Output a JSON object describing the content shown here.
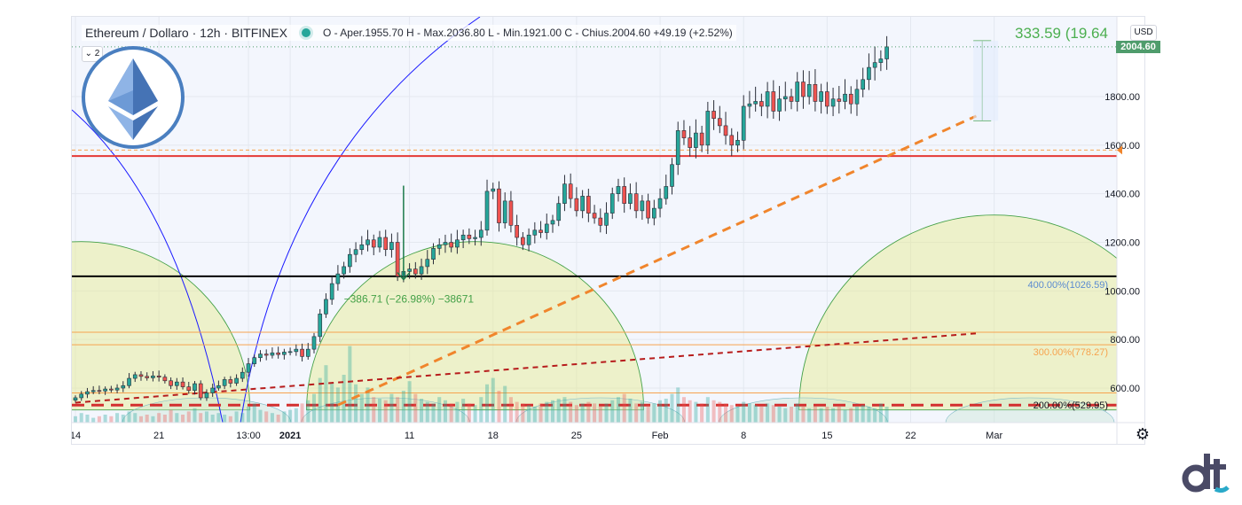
{
  "header": {
    "symbol_title": "Ethereum / Dollaro · 12h · BITFINEX",
    "ohlc": "O - Aper.1955.70  H - Max.2036.80  L - Min.1921.00  C - Chius.2004.60  +49.19 (+2.52%)",
    "collapse_label": "⌄ 2"
  },
  "toolbar": {
    "currency": "USD",
    "settings_icon": "gear-icon"
  },
  "last_price_tag": "2004.60",
  "measure_top_label": "333.59 (19.64",
  "measure_bottom_label": "−386.71 (−26.98%)  −38671",
  "fib_labels": {
    "level_400": "400.00%(1026.59)",
    "level_300": "300.00%(778.27)",
    "level_200": "200.00%(529.95)"
  },
  "colors": {
    "up": "#26a69a",
    "down": "#ef5350",
    "support_red": "#e53935",
    "support_black": "#000000",
    "trend_orange": "#f0852c",
    "trend_darkred": "#b71c1c",
    "arc_blue": "#1a1aff",
    "arc_green": "#43a047",
    "fib_orange": "#f7a34e"
  },
  "icons": [
    "ethereum-logo-icon",
    "gear-icon",
    "brand-logo-icon"
  ],
  "chart_data": {
    "type": "candlestick",
    "symbol": "Ethereum / Dollaro",
    "interval": "12h",
    "exchange": "BITFINEX",
    "ylim": [
      510,
      2100
    ],
    "y_ticks": [
      600,
      800,
      1000,
      1200,
      1400,
      1600,
      1800
    ],
    "y_tick_labels": [
      "600.00",
      "800.00",
      "1000.00",
      "1200.00",
      "1400.00",
      "1600.00",
      "1800.00"
    ],
    "x_tick_labels": [
      {
        "label": "14",
        "day": 0
      },
      {
        "label": "21",
        "day": 7
      },
      {
        "label": "13:00",
        "day": 14.5
      },
      {
        "label": "2021",
        "day": 18
      },
      {
        "label": "11",
        "day": 28
      },
      {
        "label": "18",
        "day": 35
      },
      {
        "label": "25",
        "day": 42
      },
      {
        "label": "Feb",
        "day": 49
      },
      {
        "label": "8",
        "day": 56
      },
      {
        "label": "15",
        "day": 63
      },
      {
        "label": "22",
        "day": 70
      },
      {
        "label": "Mar",
        "day": 77
      }
    ],
    "closes": [
      560,
      575,
      585,
      590,
      588,
      596,
      592,
      600,
      610,
      640,
      655,
      648,
      642,
      650,
      645,
      630,
      610,
      625,
      605,
      590,
      618,
      560,
      580,
      600,
      610,
      635,
      620,
      640,
      665,
      700,
      725,
      740,
      735,
      745,
      738,
      748,
      750,
      760,
      730,
      760,
      812,
      905,
      965,
      1030,
      1070,
      1100,
      1150,
      1170,
      1190,
      1210,
      1180,
      1220,
      1170,
      1200,
      1060,
      1080,
      1090,
      1070,
      1100,
      1130,
      1175,
      1190,
      1200,
      1180,
      1210,
      1230,
      1215,
      1220,
      1250,
      1410,
      1420,
      1280,
      1370,
      1270,
      1220,
      1190,
      1230,
      1250,
      1240,
      1275,
      1290,
      1360,
      1440,
      1380,
      1330,
      1390,
      1320,
      1300,
      1270,
      1320,
      1400,
      1430,
      1360,
      1400,
      1330,
      1370,
      1300,
      1340,
      1380,
      1430,
      1520,
      1660,
      1630,
      1590,
      1650,
      1600,
      1740,
      1710,
      1680,
      1640,
      1600,
      1620,
      1760,
      1770,
      1780,
      1760,
      1820,
      1740,
      1790,
      1800,
      1780,
      1860,
      1800,
      1850,
      1780,
      1820,
      1760,
      1790,
      1780,
      1810,
      1770,
      1830,
      1870,
      1920,
      1940,
      1955,
      2004.6
    ],
    "volumes": [
      0.4,
      0.6,
      0.5,
      0.3,
      0.4,
      0.5,
      0.4,
      0.6,
      0.5,
      0.7,
      0.6,
      0.4,
      0.5,
      0.4,
      0.6,
      0.5,
      0.8,
      0.6,
      0.5,
      0.7,
      0.9,
      0.6,
      0.7,
      0.5,
      0.6,
      0.5,
      0.4,
      0.7,
      0.6,
      1.0,
      1.2,
      0.8,
      0.7,
      0.6,
      0.5,
      0.7,
      0.8,
      0.9,
      1.2,
      1.4,
      1.8,
      2.8,
      3.6,
      2.5,
      2.2,
      3.0,
      4.8,
      2.4,
      1.8,
      2.2,
      1.6,
      1.5,
      1.4,
      1.8,
      1.6,
      2.0,
      2.6,
      1.8,
      1.5,
      1.3,
      1.2,
      1.6,
      1.4,
      1.2,
      1.3,
      1.5,
      1.2,
      1.1,
      1.6,
      2.4,
      2.8,
      2.0,
      2.3,
      1.6,
      1.3,
      1.2,
      1.1,
      1.0,
      1.2,
      1.3,
      1.4,
      1.5,
      1.6,
      1.3,
      1.1,
      1.2,
      1.3,
      1.2,
      1.0,
      1.2,
      1.4,
      1.6,
      1.8,
      1.5,
      1.2,
      1.3,
      1.1,
      1.2,
      1.4,
      1.5,
      1.8,
      2.2,
      1.6,
      1.4,
      1.3,
      1.2,
      1.6,
      1.4,
      1.3,
      1.2,
      1.1,
      1.0,
      1.3,
      1.2,
      1.1,
      1.0,
      1.2,
      1.1,
      1.0,
      0.9,
      1.0,
      1.2,
      1.0,
      0.9,
      1.0,
      0.9,
      1.0,
      0.9,
      1.0,
      0.8,
      0.9,
      1.0,
      1.1,
      1.0,
      0.9,
      1.2,
      1.0
    ],
    "horizontal_lines": [
      {
        "price": 1555,
        "style": "solid",
        "color": "#e53935"
      },
      {
        "price": 1060,
        "style": "solid",
        "color": "#000000"
      },
      {
        "price": 1580,
        "style": "dashed",
        "color": "#f7a34e"
      },
      {
        "price": 830,
        "style": "solid",
        "color": "#f7a34e"
      },
      {
        "price": 778.27,
        "style": "solid",
        "color": "#f7a34e"
      },
      {
        "price": 580,
        "style": "solid",
        "color": "#f7a34e"
      },
      {
        "price": 529.95,
        "style": "dashed",
        "color": "#d32f2f"
      }
    ],
    "trend_lines": [
      {
        "from": [
          22,
          530
        ],
        "to": [
          75.5,
          1720
        ],
        "color": "#f0852c",
        "style": "dashed"
      },
      {
        "from": [
          0,
          540
        ],
        "to": [
          75.5,
          825
        ],
        "color": "#b71c1c",
        "style": "dashed"
      }
    ],
    "measure": {
      "from_price": 1433.3,
      "to_price": 1046.6,
      "change": -386.71,
      "change_pct": -26.98
    },
    "measure_top": {
      "change": 333.59,
      "change_pct": 19.64
    }
  }
}
